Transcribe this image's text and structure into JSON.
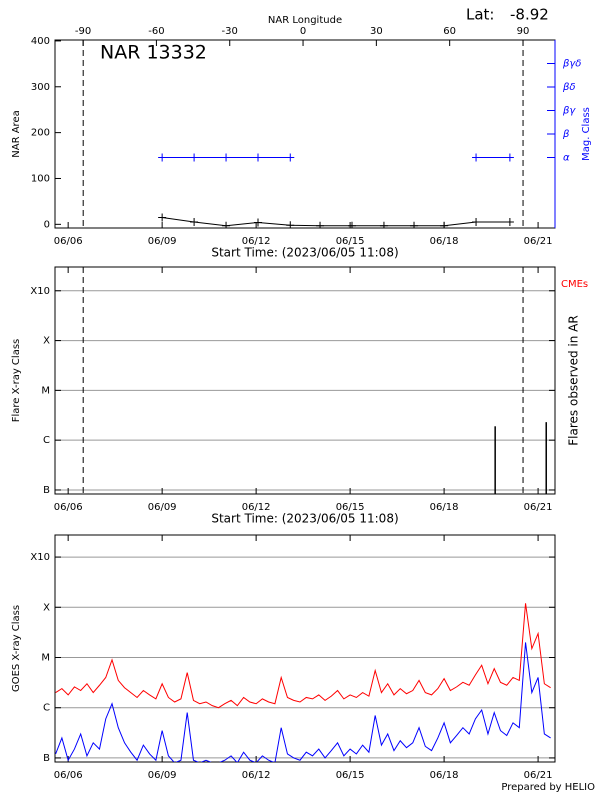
{
  "footer": "Prepared by HELIO",
  "chart_data": [
    {
      "type": "line",
      "title": "NAR 13332",
      "lat_label": "Lat:",
      "lat": -8.92,
      "x2_label": "NAR Longitude",
      "x_label": "Start Time: (2023/06/05 11:08)",
      "y_label": "NAR Area",
      "y2_label": "Mag. Class",
      "y2_color": "#0000ff",
      "marker": "plus",
      "x": [
        9.0,
        10.02,
        11.04,
        12.06,
        13.09,
        14.04,
        15.06,
        16.08,
        17.04,
        18.0,
        19.02,
        20.1
      ],
      "series": [
        {
          "color": "#000000",
          "values": [
            15,
            5,
            -3,
            4,
            -2,
            -3,
            -3,
            -3,
            -3,
            -3,
            5,
            5
          ]
        },
        {
          "color": "#0000ff",
          "axis": "y2",
          "values": [
            1,
            1,
            1,
            1,
            1,
            null,
            null,
            null,
            null,
            null,
            1,
            1
          ]
        }
      ],
      "xlim": [
        5.58,
        21.54
      ],
      "xticks": [
        {
          "value": 6,
          "label": "06/06"
        },
        {
          "value": 9,
          "label": "06/09"
        },
        {
          "value": 12,
          "label": "06/12"
        },
        {
          "value": 15,
          "label": "06/15"
        },
        {
          "value": 18,
          "label": "06/18"
        },
        {
          "value": 21,
          "label": "06/21"
        }
      ],
      "x2lim": [
        -101.5,
        103.1
      ],
      "x2ticks": [
        -90,
        -60,
        -30,
        0,
        30,
        60,
        90
      ],
      "ylim": [
        -8,
        402
      ],
      "yticks": [
        0,
        100,
        200,
        300,
        400
      ],
      "y2lim": [
        -2,
        6
      ],
      "y2ticks": [
        {
          "value": 1,
          "label": "α"
        },
        {
          "value": 2,
          "label": "β"
        },
        {
          "value": 3,
          "label": "βγ"
        },
        {
          "value": 4,
          "label": "βδ"
        },
        {
          "value": 5,
          "label": "βγδ"
        }
      ],
      "limb_lines": [
        6.48,
        20.52
      ]
    },
    {
      "type": "bar",
      "x_label": "Start Time: (2023/06/05 11:08)",
      "y_label": "Flare X-ray Class",
      "y2_label": "Flares observed in AR",
      "cme_label": "CMEs",
      "cme_color": "#ff0000",
      "x": [
        19.63,
        21.26
      ],
      "values": [
        1.9e-06,
        2.3e-06
      ],
      "color": "#000000",
      "xlim": [
        5.58,
        21.54
      ],
      "xticks": [
        {
          "value": 6,
          "label": "06/06"
        },
        {
          "value": 9,
          "label": "06/09"
        },
        {
          "value": 12,
          "label": "06/12"
        },
        {
          "value": 15,
          "label": "06/15"
        },
        {
          "value": 18,
          "label": "06/18"
        },
        {
          "value": 21,
          "label": "06/21"
        }
      ],
      "ylim": [
        8.3e-08,
        0.003
      ],
      "log_scale": true,
      "grid": true,
      "yticks": [
        {
          "value": 1e-07,
          "label": "B"
        },
        {
          "value": 1e-06,
          "label": "C"
        },
        {
          "value": 1e-05,
          "label": "M"
        },
        {
          "value": 0.0001,
          "label": "X"
        },
        {
          "value": 0.001,
          "label": "X10"
        }
      ],
      "limb_lines": [
        6.48,
        20.52
      ]
    },
    {
      "type": "line",
      "y_label": "GOES X-ray Class",
      "x": [
        5.6,
        5.8,
        6.0,
        6.2,
        6.4,
        6.6,
        6.8,
        7.0,
        7.2,
        7.4,
        7.6,
        7.8,
        8.0,
        8.2,
        8.4,
        8.6,
        8.8,
        9.0,
        9.2,
        9.4,
        9.6,
        9.8,
        10.0,
        10.2,
        10.4,
        10.6,
        10.8,
        11.0,
        11.2,
        11.4,
        11.6,
        11.8,
        12.0,
        12.2,
        12.4,
        12.6,
        12.8,
        13.0,
        13.2,
        13.4,
        13.6,
        13.8,
        14.0,
        14.2,
        14.4,
        14.6,
        14.8,
        15.0,
        15.2,
        15.4,
        15.6,
        15.8,
        16.0,
        16.2,
        16.4,
        16.6,
        16.8,
        17.0,
        17.2,
        17.4,
        17.6,
        17.8,
        18.0,
        18.2,
        18.4,
        18.6,
        18.8,
        19.0,
        19.2,
        19.4,
        19.6,
        19.8,
        20.0,
        20.2,
        20.4,
        20.6,
        20.8,
        21.0,
        21.2,
        21.4
      ],
      "series": [
        {
          "color": "#ff0000",
          "values": [
            2e-06,
            2.4e-06,
            1.8e-06,
            2.6e-06,
            2.2e-06,
            3e-06,
            2e-06,
            2.8e-06,
            4e-06,
            9e-06,
            3.5e-06,
            2.5e-06,
            2e-06,
            1.6e-06,
            2.2e-06,
            1.8e-06,
            1.5e-06,
            3e-06,
            1.6e-06,
            1.3e-06,
            1.5e-06,
            5e-06,
            1.4e-06,
            1.2e-06,
            1.3e-06,
            1.1e-06,
            1e-06,
            1.2e-06,
            1.4e-06,
            1.1e-06,
            1.6e-06,
            1.3e-06,
            1.2e-06,
            1.5e-06,
            1.3e-06,
            1.2e-06,
            4e-06,
            1.6e-06,
            1.4e-06,
            1.3e-06,
            1.6e-06,
            1.5e-06,
            1.8e-06,
            1.4e-06,
            1.7e-06,
            2.2e-06,
            1.5e-06,
            1.8e-06,
            1.6e-06,
            2e-06,
            1.7e-06,
            5.5e-06,
            2e-06,
            3e-06,
            1.8e-06,
            2.4e-06,
            1.9e-06,
            2.2e-06,
            3.5e-06,
            2e-06,
            1.8e-06,
            2.4e-06,
            3.8e-06,
            2.2e-06,
            2.6e-06,
            3.2e-06,
            2.8e-06,
            4.5e-06,
            7e-06,
            3e-06,
            6e-06,
            3.2e-06,
            2.8e-06,
            4e-06,
            3.5e-06,
            0.00012,
            1.5e-05,
            3e-05,
            3e-06,
            2.5e-06
          ]
        },
        {
          "color": "#0000ff",
          "values": [
            1.2e-07,
            2.5e-07,
            9e-08,
            1.5e-07,
            3e-07,
            1.1e-07,
            2e-07,
            1.5e-07,
            6e-07,
            1.2e-06,
            4e-07,
            2e-07,
            1.3e-07,
            9e-08,
            1.8e-07,
            1.2e-07,
            9e-08,
            3.5e-07,
            1.1e-07,
            8e-08,
            9e-08,
            8e-07,
            9e-08,
            8e-08,
            9e-08,
            8e-08,
            8e-08,
            9e-08,
            1.1e-07,
            8e-08,
            1.3e-07,
            9e-08,
            8e-08,
            1.1e-07,
            9e-08,
            8e-08,
            4e-07,
            1.2e-07,
            1e-07,
            9e-08,
            1.3e-07,
            1.1e-07,
            1.5e-07,
            1e-07,
            1.4e-07,
            2e-07,
            1.1e-07,
            1.5e-07,
            1.2e-07,
            1.8e-07,
            1.3e-07,
            7e-07,
            1.8e-07,
            3e-07,
            1.4e-07,
            2.2e-07,
            1.6e-07,
            2e-07,
            4e-07,
            1.7e-07,
            1.4e-07,
            2.5e-07,
            5e-07,
            2e-07,
            2.8e-07,
            4e-07,
            3e-07,
            6e-07,
            9e-07,
            3e-07,
            8e-07,
            3.5e-07,
            2.8e-07,
            5e-07,
            4e-07,
            2e-05,
            2e-06,
            4e-06,
            3e-07,
            2.5e-07
          ]
        }
      ],
      "xlim": [
        5.58,
        21.54
      ],
      "xticks": [
        {
          "value": 6,
          "label": "06/06"
        },
        {
          "value": 9,
          "label": "06/09"
        },
        {
          "value": 12,
          "label": "06/12"
        },
        {
          "value": 15,
          "label": "06/15"
        },
        {
          "value": 18,
          "label": "06/18"
        },
        {
          "value": 21,
          "label": "06/21"
        }
      ],
      "ylim": [
        8.3e-08,
        0.00275
      ],
      "log_scale": true,
      "grid": true,
      "yticks": [
        {
          "value": 1e-07,
          "label": "B"
        },
        {
          "value": 1e-06,
          "label": "C"
        },
        {
          "value": 1e-05,
          "label": "M"
        },
        {
          "value": 0.0001,
          "label": "X"
        },
        {
          "value": 0.001,
          "label": "X10"
        }
      ]
    }
  ]
}
